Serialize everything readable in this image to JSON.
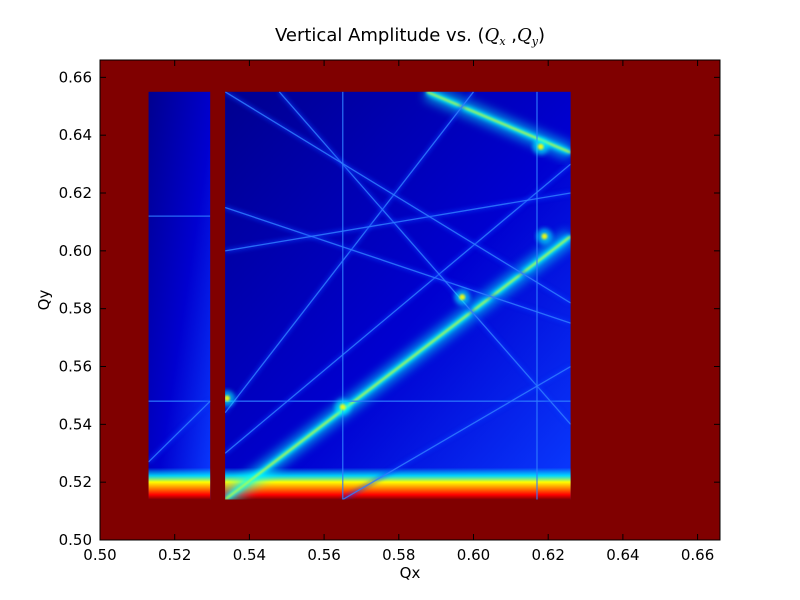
{
  "chart_data": {
    "type": "heatmap",
    "title": "Vertical Amplitude vs. (Q_x ,Q_y )",
    "title_parts": {
      "prefix": "Vertical Amplitude vs. (",
      "q1": "Q",
      "sub1": "x",
      "sep": " ,",
      "q2": "Q",
      "sub2": "y",
      "suffix": ")"
    },
    "xlabel": "Qx",
    "ylabel": "Qy",
    "xlim": [
      0.5,
      0.666
    ],
    "ylim": [
      0.5,
      0.666
    ],
    "xticks": [
      0.5,
      0.52,
      0.54,
      0.56,
      0.58,
      0.6,
      0.62,
      0.64,
      0.66
    ],
    "yticks": [
      0.5,
      0.52,
      0.54,
      0.56,
      0.58,
      0.6,
      0.62,
      0.64,
      0.66
    ],
    "xtick_labels": [
      "0.50",
      "0.52",
      "0.54",
      "0.56",
      "0.58",
      "0.60",
      "0.62",
      "0.64",
      "0.66"
    ],
    "ytick_labels": [
      "0.50",
      "0.52",
      "0.54",
      "0.56",
      "0.58",
      "0.60",
      "0.62",
      "0.64",
      "0.66"
    ],
    "colormap": "jet",
    "background_color": "#800000",
    "colors": {
      "dark_blue": "#00008f",
      "blue": "#0000ff",
      "mid_blue": "#0a3cff",
      "cyan": "#00ffff",
      "yellow": "#ffff00",
      "orange": "#ff8000",
      "red": "#ff0000",
      "dark_red": "#800000"
    },
    "data_regions": [
      {
        "name": "left-strip",
        "x": [
          0.513,
          0.5295
        ],
        "y": [
          0.514,
          0.655
        ]
      },
      {
        "name": "main-region",
        "x": [
          0.5335,
          0.626
        ],
        "y": [
          0.514,
          0.655
        ]
      }
    ],
    "unstable_gap": {
      "x": [
        0.5295,
        0.5335
      ]
    },
    "resonance_lines": [
      {
        "name": "main-diagonal-band",
        "x1": 0.5335,
        "y1": 0.514,
        "x2": 0.626,
        "y2": 0.605,
        "intensity": "high"
      },
      {
        "name": "upper-diagonal-band",
        "x1": 0.5875,
        "y1": 0.655,
        "x2": 0.626,
        "y2": 0.634,
        "intensity": "high"
      },
      {
        "name": "horizontal-0.548",
        "x1": 0.513,
        "y1": 0.548,
        "x2": 0.626,
        "y2": 0.548,
        "intensity": "low"
      },
      {
        "name": "horizontal-0.612",
        "x1": 0.513,
        "y1": 0.612,
        "x2": 0.5295,
        "y2": 0.612,
        "intensity": "low"
      },
      {
        "name": "diagonal-a",
        "x1": 0.5335,
        "y1": 0.53,
        "x2": 0.626,
        "y2": 0.63,
        "intensity": "low"
      },
      {
        "name": "diagonal-b",
        "x1": 0.5335,
        "y1": 0.544,
        "x2": 0.6,
        "y2": 0.655,
        "intensity": "low"
      },
      {
        "name": "anti-diagonal-a",
        "x1": 0.5335,
        "y1": 0.615,
        "x2": 0.626,
        "y2": 0.575,
        "intensity": "low"
      },
      {
        "name": "anti-diagonal-b",
        "x1": 0.548,
        "y1": 0.655,
        "x2": 0.626,
        "y2": 0.54,
        "intensity": "low"
      },
      {
        "name": "anti-diagonal-c",
        "x1": 0.5335,
        "y1": 0.6,
        "x2": 0.626,
        "y2": 0.62,
        "intensity": "low"
      },
      {
        "name": "steep-line",
        "x1": 0.5335,
        "y1": 0.655,
        "x2": 0.626,
        "y2": 0.582,
        "intensity": "low"
      },
      {
        "name": "lower-diagonal",
        "x1": 0.565,
        "y1": 0.514,
        "x2": 0.626,
        "y2": 0.56,
        "intensity": "low"
      },
      {
        "name": "vertical-0.565",
        "x1": 0.565,
        "y1": 0.514,
        "x2": 0.565,
        "y2": 0.655,
        "intensity": "low"
      },
      {
        "name": "vertical-0.617",
        "x1": 0.617,
        "y1": 0.514,
        "x2": 0.617,
        "y2": 0.655,
        "intensity": "low"
      },
      {
        "name": "left-strip-diagonal",
        "x1": 0.513,
        "y1": 0.527,
        "x2": 0.5295,
        "y2": 0.548,
        "intensity": "low"
      }
    ],
    "hotspots": [
      {
        "name": "hotspot-upper-right",
        "x": 0.618,
        "y": 0.636
      },
      {
        "name": "hotspot-mid",
        "x": 0.597,
        "y": 0.584
      },
      {
        "name": "hotspot-right-mid",
        "x": 0.619,
        "y": 0.605
      },
      {
        "name": "hotspot-lower",
        "x": 0.565,
        "y": 0.546
      },
      {
        "name": "hotspot-low-left",
        "x": 0.534,
        "y": 0.549
      }
    ],
    "grid": false,
    "legend": "none"
  }
}
